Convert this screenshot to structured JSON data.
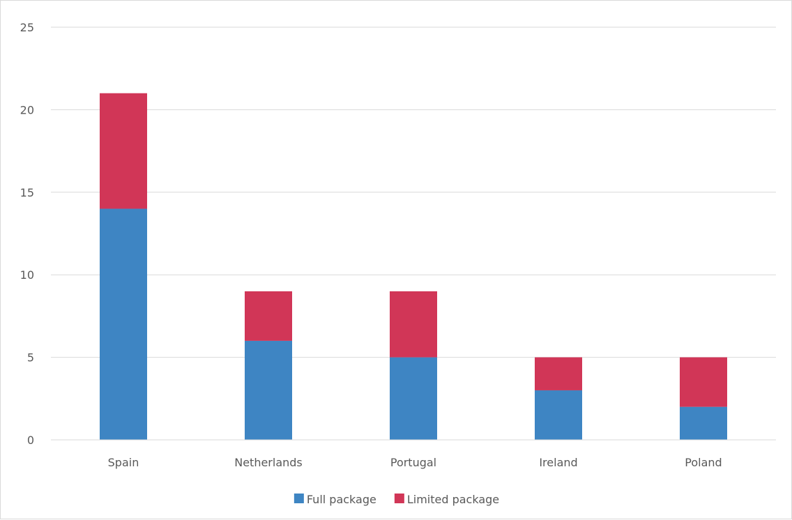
{
  "chart_data": {
    "type": "bar",
    "stacked": true,
    "categories": [
      "Spain",
      "Netherlands",
      "Portugal",
      "Ireland",
      "Poland"
    ],
    "series": [
      {
        "name": "Full package",
        "values": [
          14,
          6,
          5,
          3,
          2
        ],
        "color": "#3e85c3"
      },
      {
        "name": "Limited package",
        "values": [
          7,
          3,
          4,
          2,
          3
        ],
        "color": "#d13657"
      }
    ],
    "yticks": [
      "0",
      "5",
      "10",
      "15",
      "20",
      "25"
    ],
    "ylim": [
      0,
      25
    ],
    "grid": true,
    "legend_position": "bottom"
  }
}
